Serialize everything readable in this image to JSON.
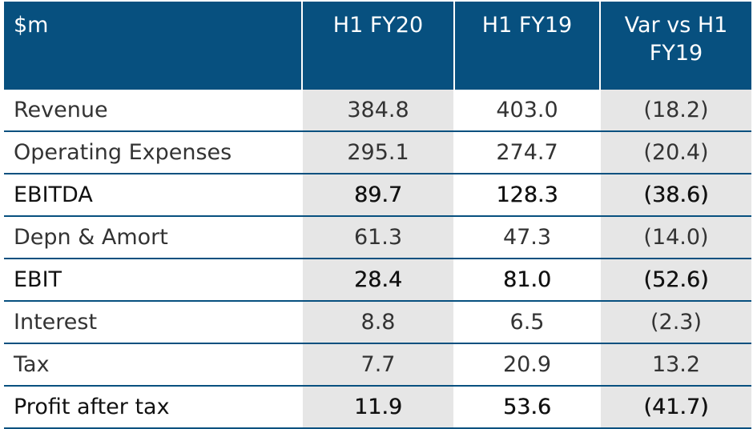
{
  "chart_data": {
    "type": "table",
    "columns": [
      "$m",
      "H1 FY20",
      "H1 FY19",
      "Var vs H1 FY19"
    ],
    "rows": [
      {
        "label": "Revenue",
        "h1_fy20": "384.8",
        "h1_fy19": "403.0",
        "var": "(18.2)",
        "emphasis": false
      },
      {
        "label": "Operating Expenses",
        "h1_fy20": "295.1",
        "h1_fy19": "274.7",
        "var": "(20.4)",
        "emphasis": false
      },
      {
        "label": "EBITDA",
        "h1_fy20": "89.7",
        "h1_fy19": "128.3",
        "var": "(38.6)",
        "emphasis": true
      },
      {
        "label": "Depn & Amort",
        "h1_fy20": "61.3",
        "h1_fy19": "47.3",
        "var": "(14.0)",
        "emphasis": false
      },
      {
        "label": "EBIT",
        "h1_fy20": "28.4",
        "h1_fy19": "81.0",
        "var": "(52.6)",
        "emphasis": true
      },
      {
        "label": "Interest",
        "h1_fy20": "8.8",
        "h1_fy19": "6.5",
        "var": "(2.3)",
        "emphasis": false
      },
      {
        "label": "Tax",
        "h1_fy20": "7.7",
        "h1_fy19": "20.9",
        "var": "13.2",
        "emphasis": false
      },
      {
        "label": "Profit after tax",
        "h1_fy20": "11.9",
        "h1_fy19": "53.6",
        "var": "(41.7)",
        "emphasis": true
      }
    ]
  },
  "colors": {
    "header_bg": "#07507f",
    "header_text": "#ffffff",
    "shaded_cell": "#e6e6e6",
    "row_divider": "#07507f"
  }
}
